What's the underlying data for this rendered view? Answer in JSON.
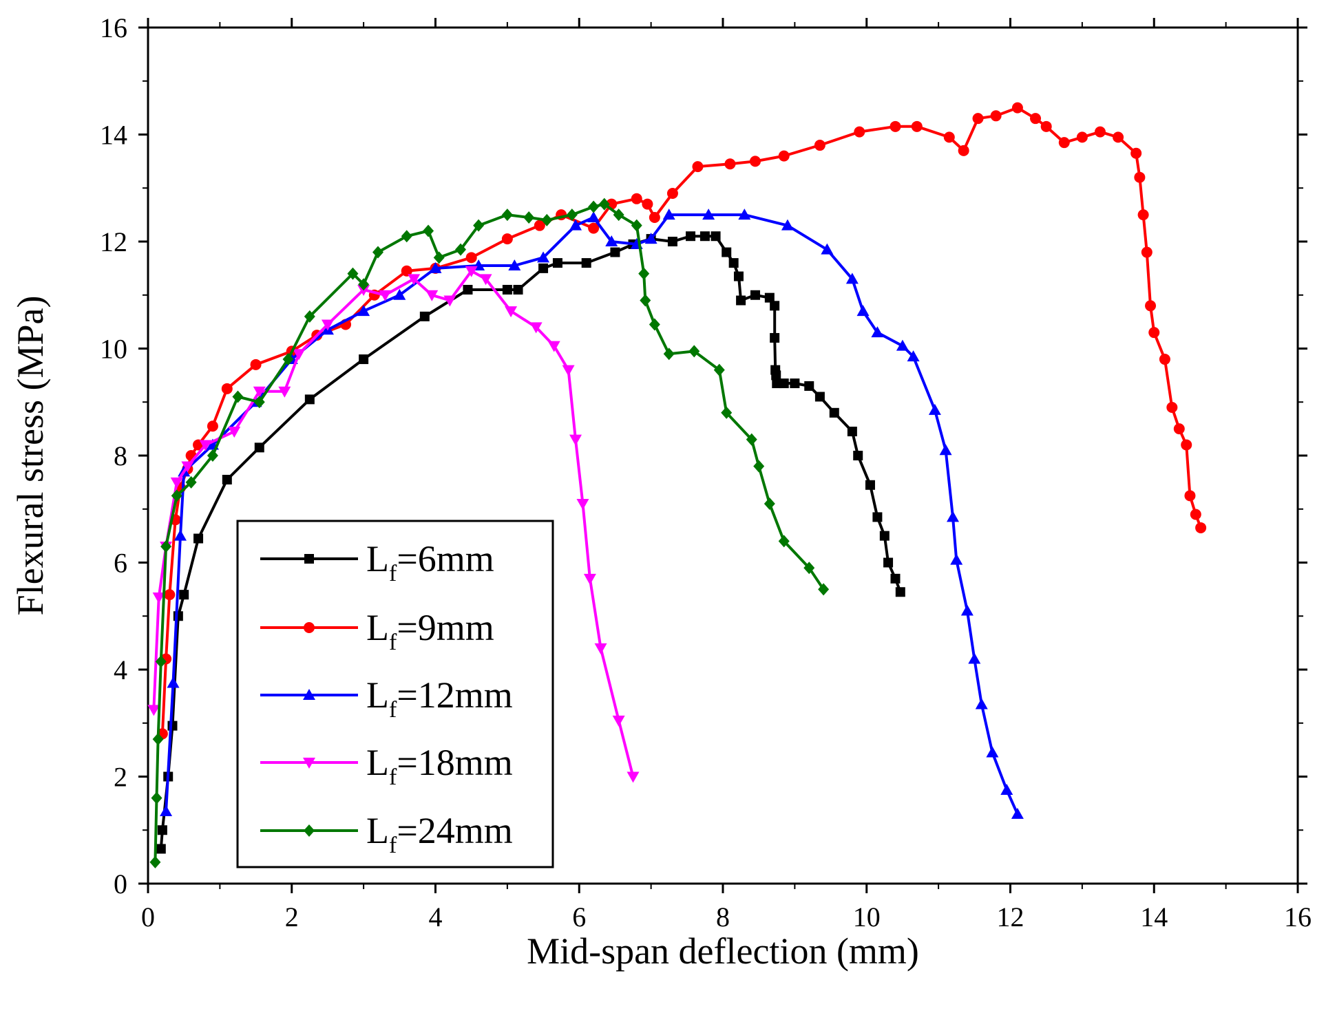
{
  "chart_data": {
    "type": "line",
    "title": "",
    "xlabel": "Mid-span deflection (mm)",
    "ylabel": "Flexural stress (MPa)",
    "xlim": [
      0,
      16
    ],
    "ylim": [
      0,
      16
    ],
    "xticks": [
      0,
      2,
      4,
      6,
      8,
      10,
      12,
      14,
      16
    ],
    "yticks": [
      0,
      2,
      4,
      6,
      8,
      10,
      12,
      14,
      16
    ],
    "grid": false,
    "legend_position": "bottom-left",
    "series": [
      {
        "name": "Lf=6mm",
        "legend_main": "L",
        "legend_sub": "f",
        "legend_rest": "=6mm",
        "color": "#000000",
        "marker": "square",
        "x": [
          0.18,
          0.2,
          0.28,
          0.34,
          0.42,
          0.5,
          0.7,
          1.1,
          1.55,
          2.25,
          3.0,
          3.85,
          4.45,
          5.0,
          5.15,
          5.5,
          5.7,
          6.1,
          6.5,
          6.75,
          7.0,
          7.3,
          7.55,
          7.75,
          7.9,
          8.05,
          8.15,
          8.22,
          8.25,
          8.45,
          8.65,
          8.72,
          8.72,
          8.73,
          8.74,
          8.75,
          8.85,
          9.0,
          9.2,
          9.35,
          9.55,
          9.8,
          9.88,
          10.05,
          10.15,
          10.25,
          10.3,
          10.4,
          10.47
        ],
        "y": [
          0.65,
          1.0,
          2.0,
          2.95,
          5.0,
          5.4,
          6.45,
          7.55,
          8.15,
          9.05,
          9.8,
          10.6,
          11.1,
          11.1,
          11.1,
          11.5,
          11.6,
          11.6,
          11.8,
          11.95,
          12.05,
          12.0,
          12.1,
          12.1,
          12.1,
          11.8,
          11.6,
          11.35,
          10.9,
          11.0,
          10.95,
          10.8,
          10.2,
          9.6,
          9.5,
          9.35,
          9.35,
          9.35,
          9.3,
          9.1,
          8.8,
          8.45,
          8.0,
          7.45,
          6.85,
          6.5,
          6.0,
          5.7,
          5.45
        ]
      },
      {
        "name": "Lf=9mm",
        "legend_main": "L",
        "legend_sub": "f",
        "legend_rest": "=9mm",
        "color": "#ff0000",
        "marker": "circle",
        "x": [
          0.2,
          0.25,
          0.3,
          0.38,
          0.45,
          0.55,
          0.6,
          0.7,
          0.9,
          1.1,
          1.5,
          2.0,
          2.35,
          2.75,
          3.15,
          3.6,
          4.0,
          4.5,
          5.0,
          5.45,
          5.75,
          6.2,
          6.45,
          6.8,
          6.95,
          7.05,
          7.3,
          7.65,
          8.1,
          8.45,
          8.85,
          9.35,
          9.9,
          10.4,
          10.7,
          11.15,
          11.35,
          11.55,
          11.8,
          12.1,
          12.35,
          12.5,
          12.75,
          13.0,
          13.25,
          13.5,
          13.75,
          13.8,
          13.85,
          13.9,
          13.95,
          14.0,
          14.15,
          14.25,
          14.35,
          14.45,
          14.5,
          14.58,
          14.65
        ],
        "y": [
          2.8,
          4.2,
          5.4,
          6.8,
          7.4,
          7.75,
          8.0,
          8.2,
          8.55,
          9.25,
          9.7,
          9.95,
          10.25,
          10.45,
          11.0,
          11.45,
          11.5,
          11.7,
          12.05,
          12.3,
          12.5,
          12.25,
          12.7,
          12.8,
          12.7,
          12.45,
          12.9,
          13.4,
          13.45,
          13.5,
          13.6,
          13.8,
          14.05,
          14.15,
          14.15,
          13.95,
          13.7,
          14.3,
          14.35,
          14.5,
          14.3,
          14.15,
          13.85,
          13.95,
          14.05,
          13.95,
          13.65,
          13.2,
          12.5,
          11.8,
          10.8,
          10.3,
          9.8,
          8.9,
          8.5,
          8.2,
          7.25,
          6.9,
          6.65
        ]
      },
      {
        "name": "Lf=12mm",
        "legend_main": "L",
        "legend_sub": "f",
        "legend_rest": "=12mm",
        "color": "#0000ff",
        "marker": "triangle-up",
        "x": [
          0.25,
          0.35,
          0.45,
          0.5,
          0.9,
          1.5,
          2.0,
          2.5,
          3.0,
          3.5,
          4.0,
          4.6,
          5.1,
          5.5,
          5.95,
          6.2,
          6.45,
          6.8,
          7.0,
          7.25,
          7.8,
          8.3,
          8.9,
          9.45,
          9.8,
          9.95,
          10.15,
          10.5,
          10.65,
          10.95,
          11.1,
          11.2,
          11.25,
          11.4,
          11.5,
          11.6,
          11.75,
          11.95,
          12.1
        ],
        "y": [
          1.35,
          3.75,
          6.5,
          7.7,
          8.2,
          9.0,
          9.8,
          10.35,
          10.7,
          11.0,
          11.5,
          11.55,
          11.55,
          11.7,
          12.3,
          12.45,
          12.0,
          11.95,
          12.05,
          12.5,
          12.5,
          12.5,
          12.3,
          11.85,
          11.3,
          10.7,
          10.3,
          10.05,
          9.85,
          8.85,
          8.1,
          6.85,
          6.05,
          5.1,
          4.2,
          3.35,
          2.45,
          1.75,
          1.3
        ]
      },
      {
        "name": "Lf=18mm",
        "legend_main": "L",
        "legend_sub": "f",
        "legend_rest": "=18mm",
        "color": "#ff00ff",
        "marker": "triangle-down",
        "x": [
          0.08,
          0.15,
          0.25,
          0.4,
          0.55,
          0.8,
          1.2,
          1.55,
          1.9,
          2.1,
          2.5,
          3.0,
          3.3,
          3.7,
          3.95,
          4.2,
          4.5,
          4.7,
          5.05,
          5.4,
          5.65,
          5.85,
          5.95,
          6.05,
          6.15,
          6.3,
          6.55,
          6.75
        ],
        "y": [
          3.25,
          5.35,
          6.3,
          7.5,
          7.8,
          8.2,
          8.45,
          9.2,
          9.2,
          9.9,
          10.45,
          11.1,
          11.0,
          11.3,
          11.0,
          10.9,
          11.45,
          11.3,
          10.7,
          10.4,
          10.05,
          9.6,
          8.3,
          7.1,
          5.7,
          4.4,
          3.05,
          2.0
        ]
      },
      {
        "name": "Lf=24mm",
        "legend_main": "L",
        "legend_sub": "f",
        "legend_rest": "=24mm",
        "color": "#007700",
        "marker": "diamond",
        "x": [
          0.1,
          0.12,
          0.14,
          0.18,
          0.25,
          0.4,
          0.6,
          0.9,
          1.25,
          1.55,
          1.95,
          2.25,
          2.85,
          3.0,
          3.2,
          3.6,
          3.9,
          4.05,
          4.35,
          4.6,
          5.0,
          5.3,
          5.55,
          5.9,
          6.2,
          6.35,
          6.55,
          6.8,
          6.9,
          6.92,
          7.05,
          7.25,
          7.6,
          7.95,
          8.05,
          8.4,
          8.5,
          8.65,
          8.85,
          9.2,
          9.4
        ],
        "y": [
          0.4,
          1.6,
          2.7,
          4.15,
          6.3,
          7.25,
          7.5,
          8.0,
          9.1,
          9.0,
          9.8,
          10.6,
          11.4,
          11.2,
          11.8,
          12.1,
          12.2,
          11.7,
          11.85,
          12.3,
          12.5,
          12.45,
          12.4,
          12.5,
          12.65,
          12.7,
          12.5,
          12.3,
          11.4,
          10.9,
          10.45,
          9.9,
          9.95,
          9.6,
          8.8,
          8.3,
          7.8,
          7.1,
          6.4,
          5.9,
          5.5
        ]
      }
    ]
  }
}
